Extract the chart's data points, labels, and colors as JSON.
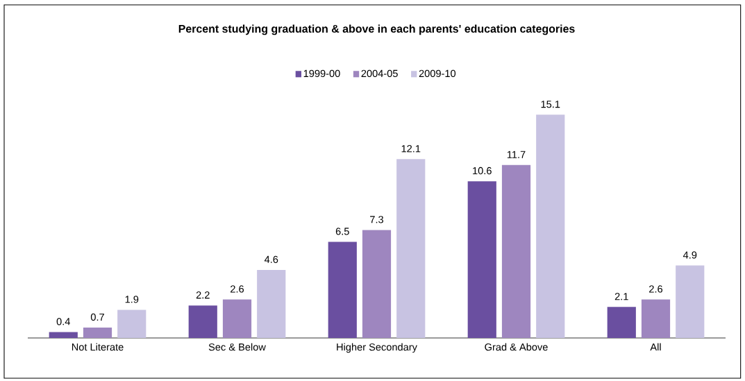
{
  "chart_data": {
    "type": "bar",
    "title": "Percent studying graduation & above in each parents' education categories",
    "categories": [
      "Not Literate",
      "Sec & Below",
      "Higher Secondary",
      "Grad & Above",
      "All"
    ],
    "series": [
      {
        "name": "1999-00",
        "color": "#6a4fa0",
        "values": [
          0.4,
          2.2,
          6.5,
          10.6,
          2.1
        ]
      },
      {
        "name": "2004-05",
        "color": "#9e86bf",
        "values": [
          0.7,
          2.6,
          7.3,
          11.7,
          2.6
        ]
      },
      {
        "name": "2009-10",
        "color": "#c8c3e2",
        "values": [
          1.9,
          4.6,
          12.1,
          15.1,
          4.9
        ]
      }
    ],
    "data_labels": true,
    "legend": "top",
    "grid": false
  }
}
